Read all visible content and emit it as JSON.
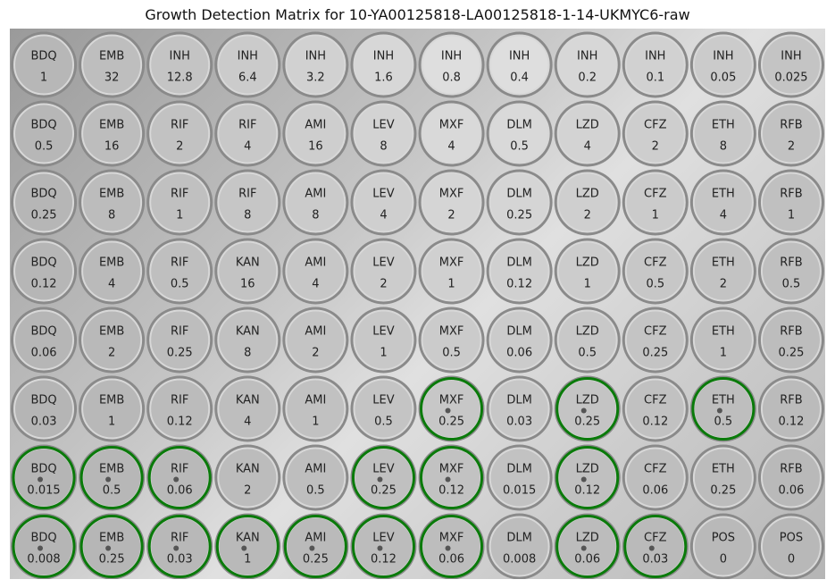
{
  "title": "Growth Detection Matrix for 10-YA00125818-LA00125818-1-14-UKMYC6-raw",
  "colors": {
    "growth_ring": "#0a7a0a",
    "label_text": "#222222"
  },
  "wells": [
    [
      {
        "drug": "BDQ",
        "conc": "1",
        "growth": false
      },
      {
        "drug": "EMB",
        "conc": "32",
        "growth": false
      },
      {
        "drug": "INH",
        "conc": "12.8",
        "growth": false
      },
      {
        "drug": "INH",
        "conc": "6.4",
        "growth": false
      },
      {
        "drug": "INH",
        "conc": "3.2",
        "growth": false
      },
      {
        "drug": "INH",
        "conc": "1.6",
        "growth": false
      },
      {
        "drug": "INH",
        "conc": "0.8",
        "growth": false
      },
      {
        "drug": "INH",
        "conc": "0.4",
        "growth": false
      },
      {
        "drug": "INH",
        "conc": "0.2",
        "growth": false
      },
      {
        "drug": "INH",
        "conc": "0.1",
        "growth": false
      },
      {
        "drug": "INH",
        "conc": "0.05",
        "growth": false
      },
      {
        "drug": "INH",
        "conc": "0.025",
        "growth": false
      }
    ],
    [
      {
        "drug": "BDQ",
        "conc": "0.5",
        "growth": false
      },
      {
        "drug": "EMB",
        "conc": "16",
        "growth": false
      },
      {
        "drug": "RIF",
        "conc": "2",
        "growth": false
      },
      {
        "drug": "RIF",
        "conc": "4",
        "growth": false
      },
      {
        "drug": "AMI",
        "conc": "16",
        "growth": false
      },
      {
        "drug": "LEV",
        "conc": "8",
        "growth": false
      },
      {
        "drug": "MXF",
        "conc": "4",
        "growth": false
      },
      {
        "drug": "DLM",
        "conc": "0.5",
        "growth": false
      },
      {
        "drug": "LZD",
        "conc": "4",
        "growth": false
      },
      {
        "drug": "CFZ",
        "conc": "2",
        "growth": false
      },
      {
        "drug": "ETH",
        "conc": "8",
        "growth": false
      },
      {
        "drug": "RFB",
        "conc": "2",
        "growth": false
      }
    ],
    [
      {
        "drug": "BDQ",
        "conc": "0.25",
        "growth": false
      },
      {
        "drug": "EMB",
        "conc": "8",
        "growth": false
      },
      {
        "drug": "RIF",
        "conc": "1",
        "growth": false
      },
      {
        "drug": "RIF",
        "conc": "8",
        "growth": false
      },
      {
        "drug": "AMI",
        "conc": "8",
        "growth": false
      },
      {
        "drug": "LEV",
        "conc": "4",
        "growth": false
      },
      {
        "drug": "MXF",
        "conc": "2",
        "growth": false
      },
      {
        "drug": "DLM",
        "conc": "0.25",
        "growth": false
      },
      {
        "drug": "LZD",
        "conc": "2",
        "growth": false
      },
      {
        "drug": "CFZ",
        "conc": "1",
        "growth": false
      },
      {
        "drug": "ETH",
        "conc": "4",
        "growth": false
      },
      {
        "drug": "RFB",
        "conc": "1",
        "growth": false
      }
    ],
    [
      {
        "drug": "BDQ",
        "conc": "0.12",
        "growth": false
      },
      {
        "drug": "EMB",
        "conc": "4",
        "growth": false
      },
      {
        "drug": "RIF",
        "conc": "0.5",
        "growth": false
      },
      {
        "drug": "KAN",
        "conc": "16",
        "growth": false
      },
      {
        "drug": "AMI",
        "conc": "4",
        "growth": false
      },
      {
        "drug": "LEV",
        "conc": "2",
        "growth": false
      },
      {
        "drug": "MXF",
        "conc": "1",
        "growth": false
      },
      {
        "drug": "DLM",
        "conc": "0.12",
        "growth": false
      },
      {
        "drug": "LZD",
        "conc": "1",
        "growth": false
      },
      {
        "drug": "CFZ",
        "conc": "0.5",
        "growth": false
      },
      {
        "drug": "ETH",
        "conc": "2",
        "growth": false
      },
      {
        "drug": "RFB",
        "conc": "0.5",
        "growth": false
      }
    ],
    [
      {
        "drug": "BDQ",
        "conc": "0.06",
        "growth": false
      },
      {
        "drug": "EMB",
        "conc": "2",
        "growth": false
      },
      {
        "drug": "RIF",
        "conc": "0.25",
        "growth": false
      },
      {
        "drug": "KAN",
        "conc": "8",
        "growth": false
      },
      {
        "drug": "AMI",
        "conc": "2",
        "growth": false
      },
      {
        "drug": "LEV",
        "conc": "1",
        "growth": false
      },
      {
        "drug": "MXF",
        "conc": "0.5",
        "growth": false
      },
      {
        "drug": "DLM",
        "conc": "0.06",
        "growth": false
      },
      {
        "drug": "LZD",
        "conc": "0.5",
        "growth": false
      },
      {
        "drug": "CFZ",
        "conc": "0.25",
        "growth": false
      },
      {
        "drug": "ETH",
        "conc": "1",
        "growth": false
      },
      {
        "drug": "RFB",
        "conc": "0.25",
        "growth": false
      }
    ],
    [
      {
        "drug": "BDQ",
        "conc": "0.03",
        "growth": false
      },
      {
        "drug": "EMB",
        "conc": "1",
        "growth": false
      },
      {
        "drug": "RIF",
        "conc": "0.12",
        "growth": false
      },
      {
        "drug": "KAN",
        "conc": "4",
        "growth": false
      },
      {
        "drug": "AMI",
        "conc": "1",
        "growth": false
      },
      {
        "drug": "LEV",
        "conc": "0.5",
        "growth": false
      },
      {
        "drug": "MXF",
        "conc": "0.25",
        "growth": true
      },
      {
        "drug": "DLM",
        "conc": "0.03",
        "growth": false
      },
      {
        "drug": "LZD",
        "conc": "0.25",
        "growth": true
      },
      {
        "drug": "CFZ",
        "conc": "0.12",
        "growth": false
      },
      {
        "drug": "ETH",
        "conc": "0.5",
        "growth": true
      },
      {
        "drug": "RFB",
        "conc": "0.12",
        "growth": false
      }
    ],
    [
      {
        "drug": "BDQ",
        "conc": "0.015",
        "growth": true
      },
      {
        "drug": "EMB",
        "conc": "0.5",
        "growth": true
      },
      {
        "drug": "RIF",
        "conc": "0.06",
        "growth": true
      },
      {
        "drug": "KAN",
        "conc": "2",
        "growth": false
      },
      {
        "drug": "AMI",
        "conc": "0.5",
        "growth": false
      },
      {
        "drug": "LEV",
        "conc": "0.25",
        "growth": true
      },
      {
        "drug": "MXF",
        "conc": "0.12",
        "growth": true
      },
      {
        "drug": "DLM",
        "conc": "0.015",
        "growth": false
      },
      {
        "drug": "LZD",
        "conc": "0.12",
        "growth": true
      },
      {
        "drug": "CFZ",
        "conc": "0.06",
        "growth": false
      },
      {
        "drug": "ETH",
        "conc": "0.25",
        "growth": false
      },
      {
        "drug": "RFB",
        "conc": "0.06",
        "growth": false
      }
    ],
    [
      {
        "drug": "BDQ",
        "conc": "0.008",
        "growth": true
      },
      {
        "drug": "EMB",
        "conc": "0.25",
        "growth": true
      },
      {
        "drug": "RIF",
        "conc": "0.03",
        "growth": true
      },
      {
        "drug": "KAN",
        "conc": "1",
        "growth": true
      },
      {
        "drug": "AMI",
        "conc": "0.25",
        "growth": true
      },
      {
        "drug": "LEV",
        "conc": "0.12",
        "growth": true
      },
      {
        "drug": "MXF",
        "conc": "0.06",
        "growth": true
      },
      {
        "drug": "DLM",
        "conc": "0.008",
        "growth": false
      },
      {
        "drug": "LZD",
        "conc": "0.06",
        "growth": true
      },
      {
        "drug": "CFZ",
        "conc": "0.03",
        "growth": true
      },
      {
        "drug": "POS",
        "conc": "0",
        "growth": false
      },
      {
        "drug": "POS",
        "conc": "0",
        "growth": false
      }
    ]
  ]
}
